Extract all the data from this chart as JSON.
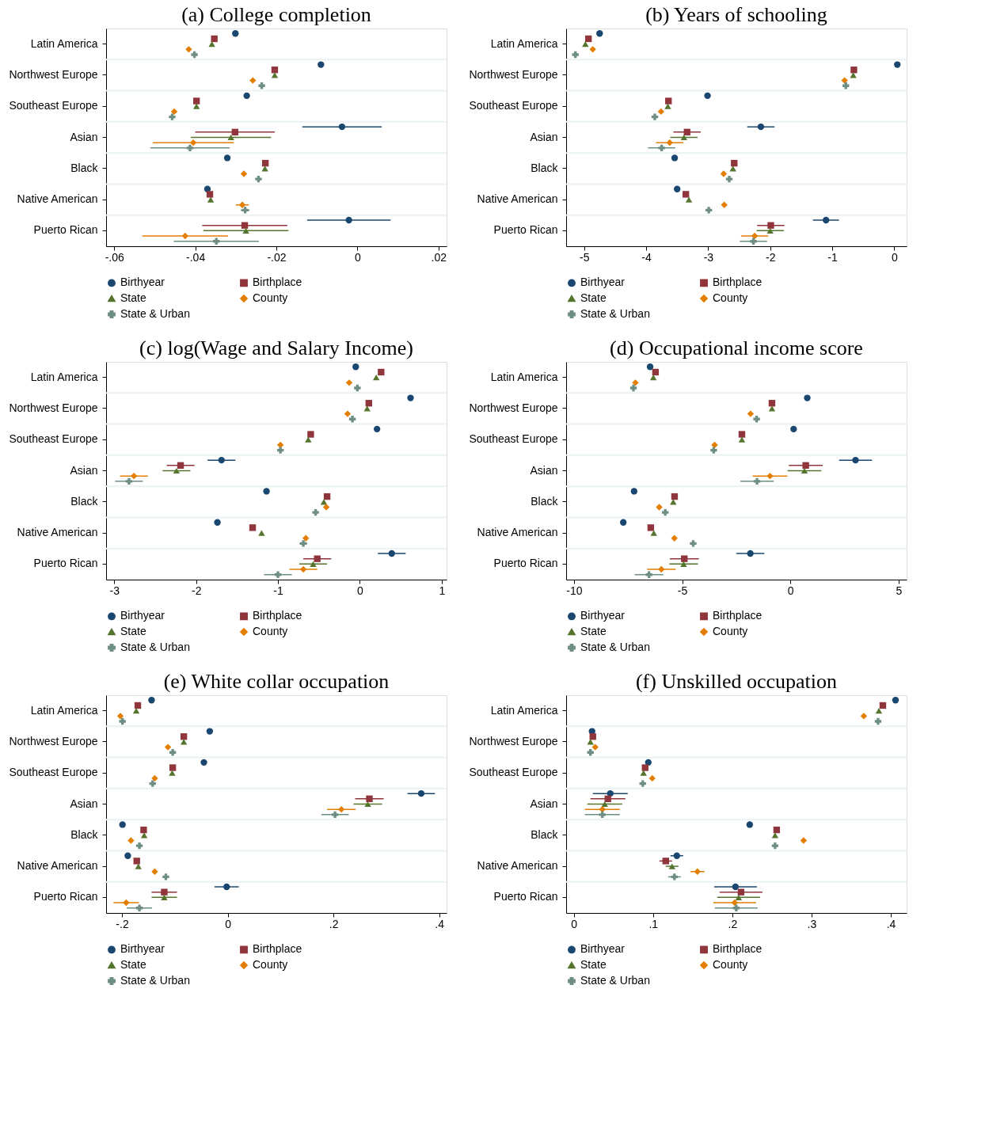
{
  "chart_data": [
    {
      "type": "scatter",
      "orientation": "horizontal",
      "title": "(a) College completion",
      "grid": "y",
      "legend": "bottom",
      "categories": [
        "Latin America",
        "Northwest Europe",
        "Southeast Europe",
        "Asian",
        "Black",
        "Native American",
        "Puerto Rican"
      ],
      "xlim": [
        -0.062,
        0.022
      ],
      "xticks": [
        {
          "value": -0.06,
          "label": "-.06"
        },
        {
          "value": -0.04,
          "label": "-.04"
        },
        {
          "value": -0.02,
          "label": "-.02"
        },
        0,
        {
          "value": 0.02,
          "label": ".02"
        }
      ],
      "series": [
        {
          "name": "Birthyear",
          "color": "#1a476f",
          "marker": "circle",
          "values": [
            -0.0301,
            -0.009,
            -0.0273,
            -0.0038,
            -0.0321,
            -0.037,
            -0.0021
          ],
          "errors": [
            null,
            null,
            null,
            0.0098,
            null,
            null,
            0.0103
          ]
        },
        {
          "name": "Birthplace",
          "color": "#90353b",
          "marker": "square",
          "values": [
            -0.0353,
            -0.0204,
            -0.0397,
            -0.0302,
            -0.0227,
            -0.0364,
            -0.0278
          ],
          "errors": [
            null,
            null,
            null,
            0.0098,
            null,
            null,
            0.0105
          ]
        },
        {
          "name": "State",
          "color": "#55752f",
          "marker": "triangle",
          "values": [
            -0.0359,
            -0.0204,
            -0.0397,
            -0.0312,
            -0.0228,
            -0.0362,
            -0.0275
          ],
          "errors": [
            null,
            null,
            null,
            0.0099,
            null,
            null,
            0.0105
          ]
        },
        {
          "name": "County",
          "color": "#e37e00",
          "marker": "diamond",
          "values": [
            -0.0416,
            -0.0258,
            -0.0452,
            -0.0405,
            -0.028,
            -0.0284,
            -0.0425
          ],
          "errors": [
            null,
            null,
            null,
            0.01,
            null,
            0.0016,
            0.0106
          ]
        },
        {
          "name": "State & Urban",
          "color": "#6e8e84",
          "marker": "cross",
          "values": [
            -0.0402,
            -0.0236,
            -0.0457,
            -0.0413,
            -0.0244,
            -0.0277,
            -0.0348
          ],
          "errors": [
            null,
            null,
            null,
            0.0098,
            null,
            0.0011,
            0.0105
          ]
        }
      ]
    },
    {
      "type": "scatter",
      "orientation": "horizontal",
      "title": "(b) Years of schooling",
      "grid": "y",
      "legend": "bottom",
      "categories": [
        "Latin America",
        "Northwest Europe",
        "Southeast Europe",
        "Asian",
        "Black",
        "Native American",
        "Puerto Rican"
      ],
      "xlim": [
        -5.29,
        0.2
      ],
      "xticks": [
        -5,
        -4,
        -3,
        -2,
        -1,
        0
      ],
      "series": [
        {
          "name": "Birthyear",
          "color": "#1a476f",
          "marker": "circle",
          "values": [
            -4.75,
            0.05,
            -3.01,
            -2.15,
            -3.54,
            -3.5,
            -1.1
          ],
          "errors": [
            null,
            null,
            null,
            0.22,
            null,
            null,
            0.21
          ]
        },
        {
          "name": "Birthplace",
          "color": "#90353b",
          "marker": "square",
          "values": [
            -4.93,
            -0.65,
            -3.64,
            -3.34,
            -2.58,
            -3.36,
            -1.99
          ],
          "errors": [
            null,
            null,
            null,
            0.22,
            null,
            null,
            0.22
          ]
        },
        {
          "name": "State",
          "color": "#55752f",
          "marker": "triangle",
          "values": [
            -4.98,
            -0.66,
            -3.65,
            -3.39,
            -2.6,
            -3.31,
            -2.0
          ],
          "errors": [
            null,
            null,
            null,
            0.22,
            null,
            null,
            0.22
          ]
        },
        {
          "name": "County",
          "color": "#e37e00",
          "marker": "diamond",
          "values": [
            -4.86,
            -0.8,
            -3.76,
            -3.62,
            -2.75,
            -2.74,
            -2.25
          ],
          "errors": [
            null,
            null,
            null,
            0.22,
            null,
            null,
            0.22
          ]
        },
        {
          "name": "State & Urban",
          "color": "#6e8e84",
          "marker": "cross",
          "values": [
            -5.14,
            -0.78,
            -3.86,
            -3.75,
            -2.66,
            -2.99,
            -2.27
          ],
          "errors": [
            null,
            null,
            null,
            0.22,
            null,
            null,
            0.22
          ]
        }
      ]
    },
    {
      "type": "scatter",
      "orientation": "horizontal",
      "title": "(c) log(Wage and Salary Income)",
      "grid": "y",
      "legend": "bottom",
      "categories": [
        "Latin America",
        "Northwest Europe",
        "Southeast Europe",
        "Asian",
        "Black",
        "Native American",
        "Puerto Rican"
      ],
      "xlim": [
        -3.1,
        1.06
      ],
      "xticks": [
        -3,
        -2,
        -1,
        0,
        1
      ],
      "series": [
        {
          "name": "Birthyear",
          "color": "#1a476f",
          "marker": "circle",
          "values": [
            -0.05,
            0.62,
            0.21,
            -1.69,
            -1.14,
            -1.74,
            0.39
          ],
          "errors": [
            null,
            null,
            null,
            0.17,
            null,
            null,
            0.17
          ]
        },
        {
          "name": "Birthplace",
          "color": "#90353b",
          "marker": "square",
          "values": [
            0.26,
            0.11,
            -0.6,
            -2.19,
            -0.4,
            -1.31,
            -0.52
          ],
          "errors": [
            null,
            null,
            null,
            0.17,
            null,
            null,
            0.17
          ]
        },
        {
          "name": "State",
          "color": "#55752f",
          "marker": "triangle",
          "values": [
            0.2,
            0.09,
            -0.63,
            -2.24,
            -0.44,
            -1.2,
            -0.57
          ],
          "errors": [
            null,
            null,
            null,
            0.17,
            null,
            null,
            0.17
          ]
        },
        {
          "name": "County",
          "color": "#e37e00",
          "marker": "diamond",
          "values": [
            -0.13,
            -0.15,
            -0.97,
            -2.76,
            -0.41,
            -0.66,
            -0.69
          ],
          "errors": [
            null,
            null,
            null,
            0.17,
            null,
            null,
            0.17
          ]
        },
        {
          "name": "State & Urban",
          "color": "#6e8e84",
          "marker": "cross",
          "values": [
            -0.03,
            -0.09,
            -0.97,
            -2.82,
            -0.54,
            -0.69,
            -1.0
          ],
          "errors": [
            null,
            null,
            null,
            0.17,
            null,
            0.05,
            0.17
          ]
        }
      ]
    },
    {
      "type": "scatter",
      "orientation": "horizontal",
      "title": "(d) Occupational income score",
      "grid": "y",
      "legend": "bottom",
      "categories": [
        "Latin America",
        "Northwest Europe",
        "Southeast Europe",
        "Asian",
        "Black",
        "Native American",
        "Puerto Rican"
      ],
      "xlim": [
        -10.36,
        5.37
      ],
      "xticks": [
        -10,
        -5,
        0,
        5
      ],
      "series": [
        {
          "name": "Birthyear",
          "color": "#1a476f",
          "marker": "circle",
          "values": [
            -6.48,
            0.78,
            0.15,
            3.01,
            -7.22,
            -7.72,
            -1.85
          ],
          "errors": [
            null,
            null,
            null,
            0.76,
            null,
            null,
            0.65
          ]
        },
        {
          "name": "Birthplace",
          "color": "#90353b",
          "marker": "square",
          "values": [
            -6.23,
            -0.85,
            -2.24,
            0.71,
            -5.35,
            -6.45,
            -4.9
          ],
          "errors": [
            null,
            null,
            null,
            0.78,
            null,
            null,
            0.67
          ]
        },
        {
          "name": "State",
          "color": "#55752f",
          "marker": "triangle",
          "values": [
            -6.33,
            -0.85,
            -2.24,
            0.65,
            -5.41,
            -6.31,
            -4.93
          ],
          "errors": [
            null,
            null,
            null,
            0.78,
            null,
            null,
            0.66
          ]
        },
        {
          "name": "County",
          "color": "#e37e00",
          "marker": "diamond",
          "values": [
            -7.16,
            -1.84,
            -3.5,
            -0.94,
            -6.06,
            -5.36,
            -5.96
          ],
          "errors": [
            null,
            null,
            null,
            0.8,
            null,
            null,
            0.66
          ]
        },
        {
          "name": "State & Urban",
          "color": "#6e8e84",
          "marker": "cross",
          "values": [
            -7.25,
            -1.56,
            -3.54,
            -1.54,
            -5.78,
            -4.49,
            -6.53
          ],
          "errors": [
            null,
            null,
            null,
            0.77,
            null,
            null,
            0.66
          ]
        }
      ]
    },
    {
      "type": "scatter",
      "orientation": "horizontal",
      "title": "(e)      White collar occupation",
      "grid": "y",
      "legend": "bottom",
      "categories": [
        "Latin America",
        "Northwest Europe",
        "Southeast Europe",
        "Asian",
        "Black",
        "Native American",
        "Puerto Rican"
      ],
      "xlim": [
        -0.23,
        0.414
      ],
      "xticks": [
        {
          "value": -0.2,
          "label": "-.2"
        },
        0,
        {
          "value": 0.2,
          "label": ".2"
        },
        {
          "value": 0.4,
          "label": ".4"
        }
      ],
      "series": [
        {
          "name": "Birthyear",
          "color": "#1a476f",
          "marker": "circle",
          "values": [
            -0.144,
            -0.034,
            -0.045,
            0.366,
            -0.199,
            -0.189,
            -0.002
          ],
          "errors": [
            null,
            null,
            null,
            0.026,
            null,
            null,
            0.023
          ]
        },
        {
          "name": "Birthplace",
          "color": "#90353b",
          "marker": "square",
          "values": [
            -0.17,
            -0.083,
            -0.104,
            0.268,
            -0.159,
            -0.172,
            -0.12
          ],
          "errors": [
            null,
            null,
            null,
            0.027,
            null,
            null,
            0.024
          ]
        },
        {
          "name": "State",
          "color": "#55752f",
          "marker": "triangle",
          "values": [
            -0.173,
            -0.083,
            -0.105,
            0.265,
            -0.158,
            -0.169,
            -0.12
          ],
          "errors": [
            null,
            null,
            null,
            0.027,
            null,
            null,
            0.024
          ]
        },
        {
          "name": "County",
          "color": "#e37e00",
          "marker": "diamond",
          "values": [
            -0.203,
            -0.113,
            -0.138,
            0.215,
            -0.183,
            -0.138,
            -0.192
          ],
          "errors": [
            null,
            null,
            null,
            0.027,
            null,
            null,
            0.024
          ]
        },
        {
          "name": "State & Urban",
          "color": "#6e8e84",
          "marker": "cross",
          "values": [
            -0.199,
            -0.104,
            -0.142,
            0.203,
            -0.167,
            -0.117,
            -0.167
          ],
          "errors": [
            null,
            null,
            null,
            0.026,
            null,
            null,
            0.024
          ]
        }
      ]
    },
    {
      "type": "scatter",
      "orientation": "horizontal",
      "title": "(f) Unskilled occupation",
      "grid": "y",
      "legend": "bottom",
      "categories": [
        "Latin America",
        "Northwest Europe",
        "Southeast Europe",
        "Asian",
        "Black",
        "Native American",
        "Puerto Rican"
      ],
      "xlim": [
        -0.0097,
        0.42
      ],
      "xticks": [
        0,
        {
          "value": 0.1,
          "label": ".1"
        },
        {
          "value": 0.2,
          "label": ".2"
        },
        {
          "value": 0.3,
          "label": ".3"
        },
        {
          "value": 0.4,
          "label": ".4"
        }
      ],
      "series": [
        {
          "name": "Birthyear",
          "color": "#1a476f",
          "marker": "circle",
          "values": [
            0.406,
            0.023,
            0.094,
            0.046,
            0.222,
            0.13,
            0.204
          ],
          "errors": [
            null,
            null,
            null,
            0.022,
            null,
            0.008,
            0.027
          ]
        },
        {
          "name": "Birthplace",
          "color": "#90353b",
          "marker": "square",
          "values": [
            0.39,
            0.024,
            0.09,
            0.043,
            0.256,
            0.116,
            0.211
          ],
          "errors": [
            null,
            null,
            null,
            0.022,
            null,
            0.008,
            0.027
          ]
        },
        {
          "name": "State",
          "color": "#55752f",
          "marker": "triangle",
          "values": [
            0.385,
            0.021,
            0.088,
            0.039,
            0.254,
            0.124,
            0.208
          ],
          "errors": [
            null,
            null,
            null,
            0.022,
            null,
            0.008,
            0.027
          ]
        },
        {
          "name": "County",
          "color": "#e37e00",
          "marker": "diamond",
          "values": [
            0.366,
            0.027,
            0.099,
            0.036,
            0.29,
            0.156,
            0.203
          ],
          "errors": [
            null,
            null,
            null,
            0.022,
            null,
            0.009,
            0.027
          ]
        },
        {
          "name": "State & Urban",
          "color": "#6e8e84",
          "marker": "cross",
          "values": [
            0.384,
            0.021,
            0.087,
            0.036,
            0.254,
            0.127,
            0.205
          ],
          "errors": [
            null,
            null,
            null,
            0.022,
            null,
            0.008,
            0.027
          ]
        }
      ]
    }
  ]
}
